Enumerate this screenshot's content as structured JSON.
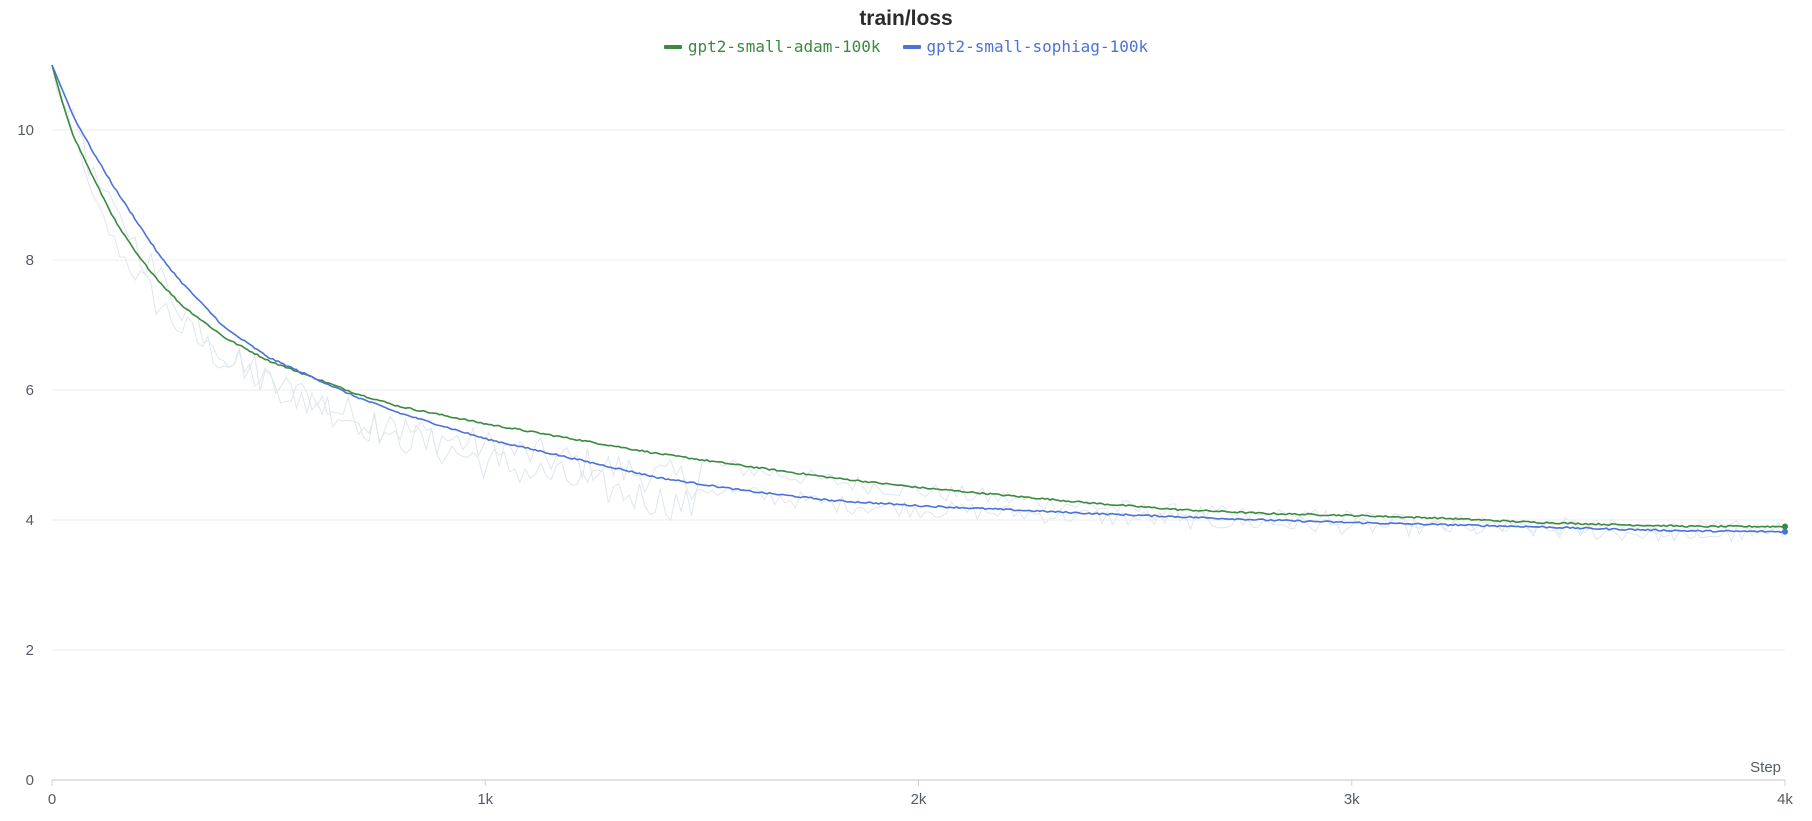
{
  "chart_data": {
    "type": "line",
    "title": "train/loss",
    "xlabel": "Step",
    "ylabel": "",
    "xlim": [
      0,
      4000
    ],
    "ylim": [
      0,
      11
    ],
    "grid": true,
    "legend_position": "top-center",
    "x_ticks": [
      0,
      1000,
      2000,
      3000,
      4000
    ],
    "x_tick_labels": [
      "0",
      "1k",
      "2k",
      "3k",
      "4k"
    ],
    "y_ticks": [
      0,
      2,
      4,
      6,
      8,
      10
    ],
    "y_tick_labels": [
      "0",
      "2",
      "4",
      "6",
      "8",
      "10"
    ],
    "series": [
      {
        "name": "gpt2-small-adam-100k",
        "color": "#3a8a3f",
        "x": [
          0,
          25,
          50,
          100,
          150,
          200,
          250,
          300,
          400,
          500,
          600,
          700,
          800,
          1000,
          1200,
          1400,
          1600,
          1800,
          2000,
          2200,
          2400,
          2600,
          2800,
          3000,
          3200,
          3400,
          3600,
          3800,
          4000
        ],
        "y": [
          11.0,
          10.4,
          9.9,
          9.2,
          8.55,
          8.05,
          7.65,
          7.3,
          6.8,
          6.45,
          6.2,
          5.95,
          5.75,
          5.48,
          5.25,
          5.02,
          4.83,
          4.65,
          4.5,
          4.38,
          4.26,
          4.16,
          4.1,
          4.07,
          4.03,
          3.97,
          3.93,
          3.9,
          3.9
        ]
      },
      {
        "name": "gpt2-small-sophiag-100k",
        "color": "#4a72d8",
        "x": [
          0,
          25,
          50,
          100,
          150,
          200,
          250,
          300,
          400,
          500,
          600,
          700,
          800,
          1000,
          1200,
          1400,
          1600,
          1800,
          2000,
          2200,
          2400,
          2600,
          2800,
          3000,
          3200,
          3400,
          3600,
          3800,
          4000
        ],
        "y": [
          11.0,
          10.6,
          10.2,
          9.6,
          9.05,
          8.55,
          8.05,
          7.65,
          6.95,
          6.5,
          6.2,
          5.9,
          5.65,
          5.25,
          4.95,
          4.65,
          4.45,
          4.3,
          4.22,
          4.16,
          4.1,
          4.05,
          4.0,
          3.96,
          3.93,
          3.9,
          3.86,
          3.83,
          3.82
        ]
      }
    ]
  },
  "colors": {
    "raw_series": "#dfe6ee",
    "grid": "#eeeeee",
    "axis": "#d0d0d0"
  }
}
